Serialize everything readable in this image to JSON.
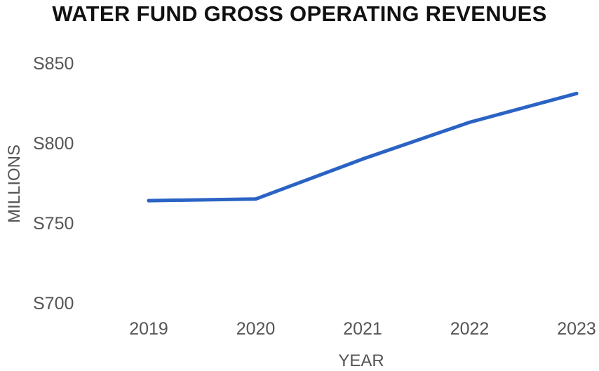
{
  "chart_data": {
    "type": "line",
    "title": "WATER FUND GROSS OPERATING REVENUES",
    "xlabel": "YEAR",
    "ylabel": "MILLIONS",
    "categories": [
      "2019",
      "2020",
      "2021",
      "2022",
      "2023"
    ],
    "series": [
      {
        "values": [
          764,
          765,
          790,
          813,
          831
        ]
      }
    ],
    "yticks": [
      700,
      750,
      800,
      850
    ],
    "ytick_labels": [
      "S700",
      "S750",
      "S800",
      "S850"
    ],
    "ylim": [
      700,
      850
    ],
    "grid": false,
    "legend": "none",
    "line_color": "#2a63c4"
  }
}
